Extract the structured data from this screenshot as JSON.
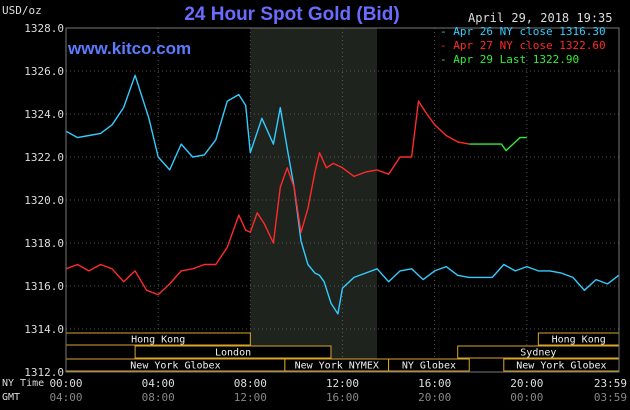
{
  "header": {
    "title": "24 Hour Spot Gold (Bid)",
    "date": "April 29, 2018 19:35",
    "unit": "USD/oz",
    "brand": "www.kitco.com"
  },
  "legend": [
    {
      "label": "Apr 26 NY close 1316.30",
      "color": "#33ccff"
    },
    {
      "label": "Apr 27 NY close 1322.60",
      "color": "#ff2a2a"
    },
    {
      "label": "Apr 29 Last 1322.90",
      "color": "#33ee33"
    }
  ],
  "time_rows": {
    "ny_label": "NY Time",
    "gmt_label": "GMT"
  },
  "markets_top": [
    {
      "label": "Hong Kong",
      "start": 0,
      "end": 8
    },
    {
      "label": "Hong Kong",
      "start": 20.5,
      "end": 24
    }
  ],
  "markets_mid": [
    {
      "label": "London",
      "start": 3,
      "end": 11.5
    },
    {
      "label": "Sydney",
      "start": 17,
      "end": 24
    }
  ],
  "markets_bottom": [
    {
      "label": "New York Globex",
      "start": 0,
      "end": 9.5
    },
    {
      "label": "New York NYMEX",
      "start": 9.5,
      "end": 14
    },
    {
      "label": "NY Globex",
      "start": 14,
      "end": 17.5
    },
    {
      "label": "New York Globex",
      "start": 19,
      "end": 24
    }
  ],
  "chart_data": {
    "type": "line",
    "title": "24 Hour Spot Gold (Bid)",
    "ylabel": "USD/oz",
    "ylim": [
      1312.0,
      1328.0
    ],
    "yticks": [
      "1312.0",
      "1314.0",
      "1316.0",
      "1318.0",
      "1320.0",
      "1322.0",
      "1324.0",
      "1326.0",
      "1328.0"
    ],
    "xlim": [
      0,
      24
    ],
    "xticks_ny": [
      "00:00",
      "04:00",
      "08:00",
      "12:00",
      "16:00",
      "20:00",
      "23:59"
    ],
    "xticks_gmt": [
      "04:00",
      "08:00",
      "12:00",
      "16:00",
      "20:00",
      "00:00",
      "03:59"
    ],
    "nymex_session": [
      8,
      13.5
    ],
    "grid": true,
    "series": [
      {
        "name": "Apr 26 NY close 1316.30",
        "color": "#33ccff",
        "x": [
          0,
          0.5,
          1,
          1.5,
          2,
          2.5,
          3,
          3.3,
          3.6,
          4,
          4.5,
          5,
          5.5,
          6,
          6.5,
          7,
          7.5,
          7.8,
          8,
          8.5,
          9,
          9.3,
          9.6,
          9.9,
          10.2,
          10.5,
          10.8,
          11,
          11.2,
          11.5,
          11.8,
          12,
          12.5,
          13,
          13.5,
          14,
          14.5,
          15,
          15.5,
          16,
          16.5,
          17,
          17.5,
          18,
          18.5,
          19,
          19.5,
          20,
          20.5,
          21,
          21.5,
          22,
          22.5,
          23,
          23.5,
          23.99
        ],
        "y": [
          1323.2,
          1322.9,
          1323.0,
          1323.1,
          1323.5,
          1324.3,
          1325.8,
          1324.8,
          1323.8,
          1322.0,
          1321.4,
          1322.6,
          1322.0,
          1322.1,
          1322.8,
          1324.6,
          1324.9,
          1324.4,
          1322.2,
          1323.8,
          1322.6,
          1324.3,
          1322.4,
          1320.6,
          1318.1,
          1317.0,
          1316.6,
          1316.5,
          1316.2,
          1315.2,
          1314.7,
          1315.9,
          1316.4,
          1316.6,
          1316.8,
          1316.2,
          1316.7,
          1316.8,
          1316.3,
          1316.7,
          1316.9,
          1316.5,
          1316.4,
          1316.4,
          1316.4,
          1317.0,
          1316.7,
          1316.9,
          1316.7,
          1316.7,
          1316.6,
          1316.4,
          1315.8,
          1316.3,
          1316.1,
          1316.5
        ]
      },
      {
        "name": "Apr 27 NY close 1322.60",
        "color": "#ff2a2a",
        "x": [
          0,
          0.5,
          1,
          1.5,
          2,
          2.5,
          3,
          3.5,
          4,
          4.5,
          5,
          5.5,
          6,
          6.5,
          7,
          7.5,
          7.8,
          8,
          8.3,
          8.6,
          9,
          9.3,
          9.6,
          9.9,
          10.2,
          10.5,
          10.8,
          11,
          11.3,
          11.6,
          12,
          12.5,
          13,
          13.5,
          14,
          14.5,
          15,
          15.3,
          15.6,
          16,
          16.5,
          17,
          17.5
        ],
        "y": [
          1316.8,
          1317.0,
          1316.7,
          1317.0,
          1316.8,
          1316.2,
          1316.7,
          1315.8,
          1315.6,
          1316.1,
          1316.7,
          1316.8,
          1317.0,
          1317.0,
          1317.8,
          1319.3,
          1318.6,
          1318.5,
          1319.4,
          1318.9,
          1318.0,
          1320.6,
          1321.5,
          1320.6,
          1318.5,
          1319.6,
          1321.3,
          1322.2,
          1321.5,
          1321.7,
          1321.5,
          1321.1,
          1321.3,
          1321.4,
          1321.2,
          1322.0,
          1322.0,
          1324.6,
          1324.1,
          1323.5,
          1323.0,
          1322.7,
          1322.6
        ]
      },
      {
        "name": "Apr 29 Last 1322.90",
        "color": "#33ee33",
        "x": [
          17.5,
          18,
          18.6,
          18.9,
          19.1,
          19.4,
          19.7,
          20.0
        ],
        "y": [
          1322.6,
          1322.6,
          1322.6,
          1322.6,
          1322.3,
          1322.6,
          1322.9,
          1322.9
        ]
      }
    ]
  }
}
